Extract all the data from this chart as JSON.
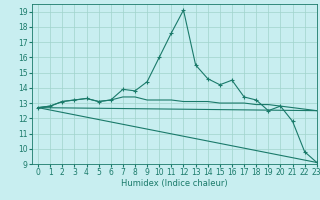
{
  "title": "",
  "xlabel": "Humidex (Indice chaleur)",
  "ylabel": "",
  "xlim": [
    -0.5,
    23
  ],
  "ylim": [
    9,
    19.5
  ],
  "yticks": [
    9,
    10,
    11,
    12,
    13,
    14,
    15,
    16,
    17,
    18,
    19
  ],
  "xticks": [
    0,
    1,
    2,
    3,
    4,
    5,
    6,
    7,
    8,
    9,
    10,
    11,
    12,
    13,
    14,
    15,
    16,
    17,
    18,
    19,
    20,
    21,
    22,
    23
  ],
  "bg_color": "#c8eef0",
  "grid_color": "#a0d4cc",
  "line_color": "#1a7a6a",
  "line1_x": [
    0,
    1,
    2,
    3,
    4,
    5,
    6,
    7,
    8,
    9,
    10,
    11,
    12,
    13,
    14,
    15,
    16,
    17,
    18,
    19,
    20,
    21,
    22,
    23
  ],
  "line1_y": [
    12.7,
    12.8,
    13.1,
    13.2,
    13.3,
    13.1,
    13.2,
    13.9,
    13.8,
    14.4,
    16.0,
    17.6,
    19.1,
    15.5,
    14.6,
    14.2,
    14.5,
    13.4,
    13.2,
    12.5,
    12.8,
    11.8,
    9.8,
    9.1
  ],
  "line2_x": [
    0,
    1,
    2,
    3,
    4,
    5,
    6,
    7,
    8,
    9,
    10,
    11,
    12,
    13,
    14,
    15,
    16,
    17,
    18,
    19,
    20,
    21,
    22,
    23
  ],
  "line2_y": [
    12.7,
    12.8,
    13.1,
    13.2,
    13.3,
    13.1,
    13.2,
    13.4,
    13.4,
    13.2,
    13.2,
    13.2,
    13.1,
    13.1,
    13.1,
    13.0,
    13.0,
    13.0,
    12.9,
    12.9,
    12.8,
    12.7,
    12.6,
    12.5
  ],
  "line3_x": [
    0,
    23
  ],
  "line3_y": [
    12.7,
    12.5
  ],
  "line4_x": [
    0,
    23
  ],
  "line4_y": [
    12.7,
    9.1
  ],
  "tick_fontsize": 5.5,
  "xlabel_fontsize": 6.0,
  "lw": 0.8,
  "marker_size": 3.0
}
